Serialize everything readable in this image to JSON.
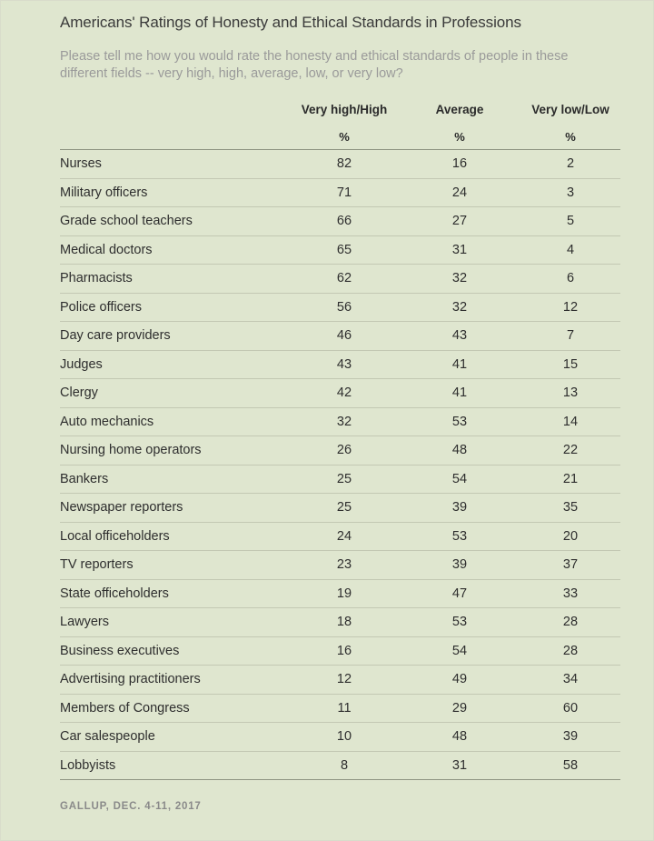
{
  "title": "Americans' Ratings of Honesty and Ethical Standards in Professions",
  "subtitle": "Please tell me how you would rate the honesty and ethical standards of people in these different fields -- very high, high, average, low, or very low?",
  "columns": [
    {
      "label": "Very high/High",
      "unit": "%"
    },
    {
      "label": "Average",
      "unit": "%"
    },
    {
      "label": "Very low/Low",
      "unit": "%"
    }
  ],
  "rows": [
    {
      "profession": "Nurses",
      "high": "82",
      "average": "16",
      "low": "2"
    },
    {
      "profession": "Military officers",
      "high": "71",
      "average": "24",
      "low": "3"
    },
    {
      "profession": "Grade school teachers",
      "high": "66",
      "average": "27",
      "low": "5"
    },
    {
      "profession": "Medical doctors",
      "high": "65",
      "average": "31",
      "low": "4"
    },
    {
      "profession": "Pharmacists",
      "high": "62",
      "average": "32",
      "low": "6"
    },
    {
      "profession": "Police officers",
      "high": "56",
      "average": "32",
      "low": "12"
    },
    {
      "profession": "Day care providers",
      "high": "46",
      "average": "43",
      "low": "7"
    },
    {
      "profession": "Judges",
      "high": "43",
      "average": "41",
      "low": "15"
    },
    {
      "profession": "Clergy",
      "high": "42",
      "average": "41",
      "low": "13"
    },
    {
      "profession": "Auto mechanics",
      "high": "32",
      "average": "53",
      "low": "14"
    },
    {
      "profession": "Nursing home operators",
      "high": "26",
      "average": "48",
      "low": "22"
    },
    {
      "profession": "Bankers",
      "high": "25",
      "average": "54",
      "low": "21"
    },
    {
      "profession": "Newspaper reporters",
      "high": "25",
      "average": "39",
      "low": "35"
    },
    {
      "profession": "Local officeholders",
      "high": "24",
      "average": "53",
      "low": "20"
    },
    {
      "profession": "TV reporters",
      "high": "23",
      "average": "39",
      "low": "37"
    },
    {
      "profession": "State officeholders",
      "high": "19",
      "average": "47",
      "low": "33"
    },
    {
      "profession": "Lawyers",
      "high": "18",
      "average": "53",
      "low": "28"
    },
    {
      "profession": "Business executives",
      "high": "16",
      "average": "54",
      "low": "28"
    },
    {
      "profession": "Advertising practitioners",
      "high": "12",
      "average": "49",
      "low": "34"
    },
    {
      "profession": "Members of Congress",
      "high": "11",
      "average": "29",
      "low": "60"
    },
    {
      "profession": "Car salespeople",
      "high": "10",
      "average": "48",
      "low": "39"
    },
    {
      "profession": "Lobbyists",
      "high": "8",
      "average": "31",
      "low": "58"
    }
  ],
  "source": "GALLUP, DEC. 4-11, 2017"
}
